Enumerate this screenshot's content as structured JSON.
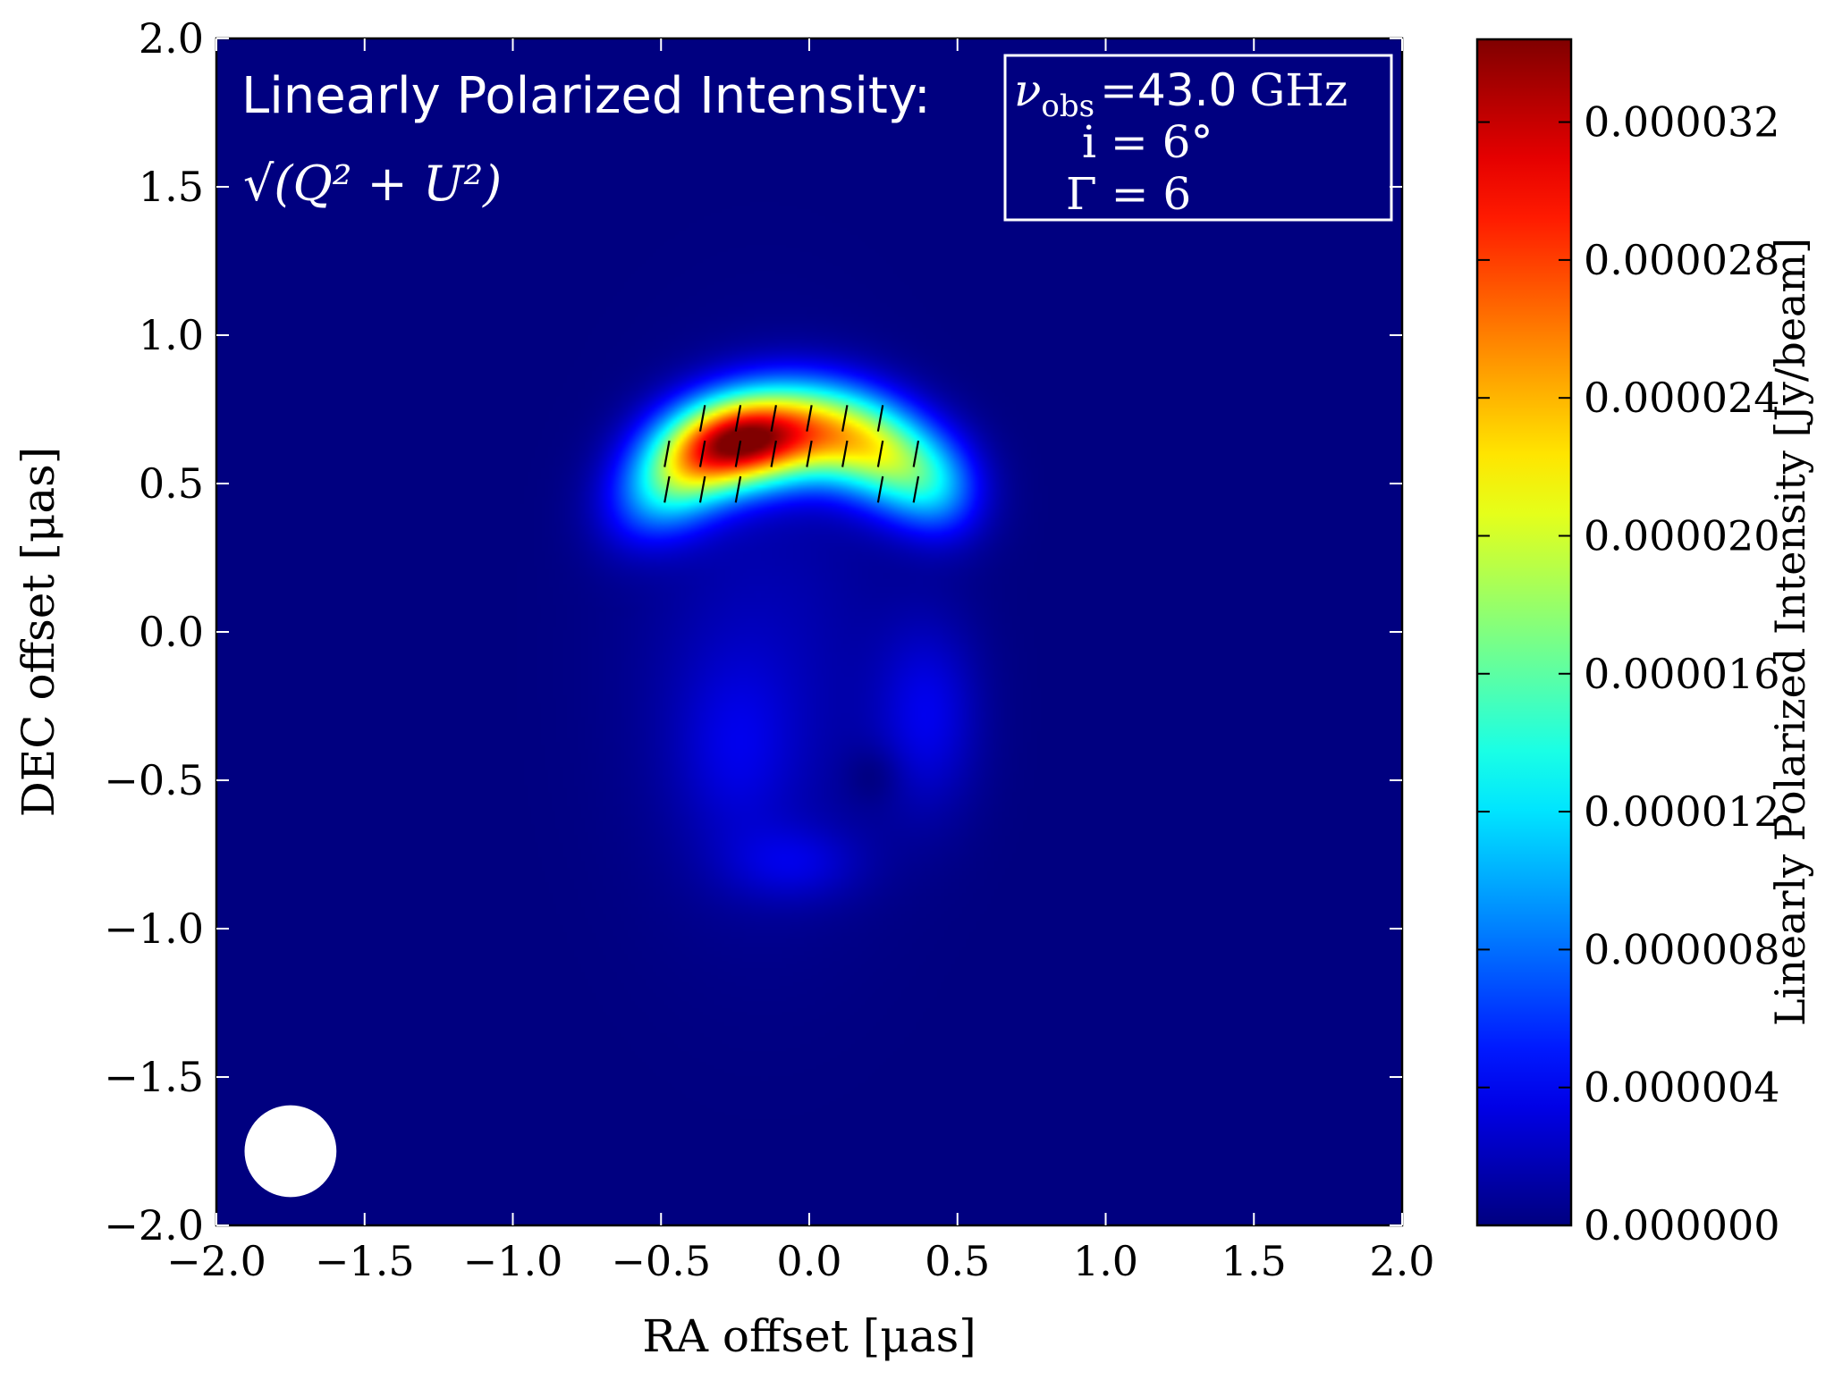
{
  "chart_data": {
    "type": "heatmap",
    "title_line1": "Linearly Polarized Intensity:",
    "title_formula": "√(Q² + U²)",
    "xlabel": "RA offset [μas]",
    "ylabel": "DEC offset [μas]",
    "xlim": [
      -2.0,
      2.0
    ],
    "ylim": [
      -2.0,
      2.0
    ],
    "xticks": [
      "−2.0",
      "−1.5",
      "−1.0",
      "−0.5",
      "0.0",
      "0.5",
      "1.0",
      "1.5",
      "2.0"
    ],
    "yticks": [
      "−2.0",
      "−1.5",
      "−1.0",
      "−0.5",
      "0.0",
      "0.5",
      "1.0",
      "1.5",
      "2.0"
    ],
    "xtick_values": [
      -2.0,
      -1.5,
      -1.0,
      -0.5,
      0.0,
      0.5,
      1.0,
      1.5,
      2.0
    ],
    "ytick_values": [
      -2.0,
      -1.5,
      -1.0,
      -0.5,
      0.0,
      0.5,
      1.0,
      1.5,
      2.0
    ],
    "colorbar": {
      "label": "Linearly Polarized Intensity [Jy/beam]",
      "range": [
        0.0,
        3.44e-05
      ],
      "ticks": [
        "0.000000",
        "0.000004",
        "0.000008",
        "0.000012",
        "0.000016",
        "0.000020",
        "0.000024",
        "0.000028",
        "0.000032"
      ],
      "tick_values": [
        0.0,
        4e-06,
        8e-06,
        1.2e-05,
        1.6e-05,
        2e-05,
        2.4e-05,
        2.8e-05,
        3.2e-05
      ],
      "colormap": "jet"
    },
    "legend": {
      "placement": "top-right",
      "line1_sym": "ν",
      "line1_sub": "obs",
      "line1_eq": "=",
      "line1_value": "43.0",
      "line1_unit": "GHz",
      "line2": "i = 6°",
      "line3": "Γ = 6"
    },
    "beam": {
      "ra": -1.75,
      "dec": -1.75,
      "radius": 0.155,
      "color": "#ffffff"
    },
    "peak_intensity": 3.42e-05,
    "peak_position": [
      -0.2,
      0.63
    ]
  }
}
